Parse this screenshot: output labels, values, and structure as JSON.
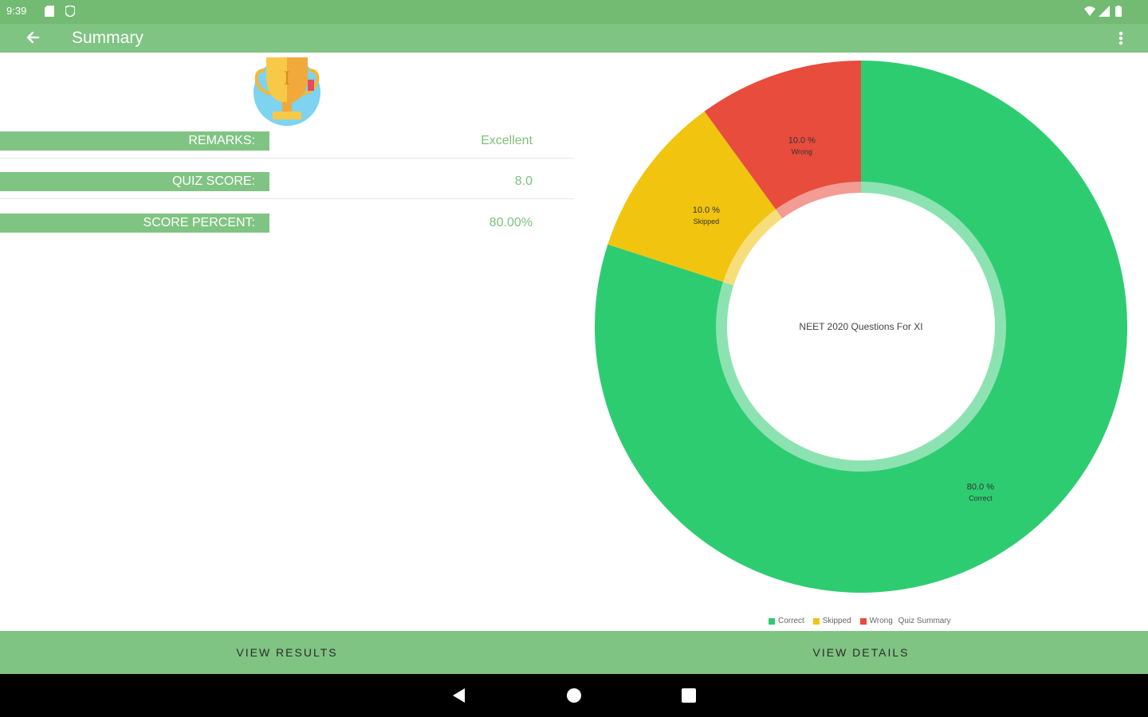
{
  "status_bar": {
    "time": "9:39"
  },
  "app_bar": {
    "title": "Summary"
  },
  "summary": {
    "rows": [
      {
        "label": "REMARKS:",
        "value": "Excellent"
      },
      {
        "label": "QUIZ SCORE:",
        "value": "8.0"
      },
      {
        "label": "SCORE PERCENT:",
        "value": "80.00%"
      }
    ]
  },
  "chart_data": {
    "type": "pie",
    "center_text": "NEET 2020 Questions For XI",
    "slices": [
      {
        "label": "Correct",
        "value": 80.0,
        "display": "80.0 %",
        "color": "#2ecc71"
      },
      {
        "label": "Skipped",
        "value": 10.0,
        "display": "10.0 %",
        "color": "#f1c40f"
      },
      {
        "label": "Wrong",
        "value": 10.0,
        "display": "10.0 %",
        "color": "#e74c3c"
      }
    ],
    "legend": [
      "Correct",
      "Skipped",
      "Wrong"
    ],
    "description": "Quiz Summary"
  },
  "bottom_bar": {
    "view_results": "VIEW RESULTS",
    "view_details": "VIEW DETAILS"
  },
  "colors": {
    "primary": "#80c483",
    "status": "#73bb73",
    "accent_text": "#7cc17c"
  }
}
